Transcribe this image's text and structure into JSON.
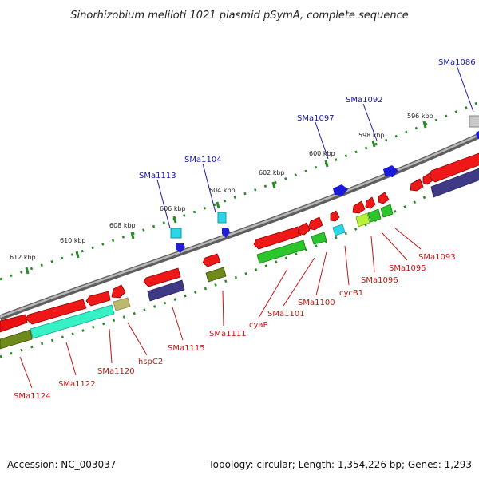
{
  "title": "Sinorhizobium meliloti 1021 plasmid pSymA, complete sequence",
  "footer": {
    "accession": "Accession: NC_003037",
    "info": "Topology: circular; Length: 1,354,226 bp; Genes: 1,293"
  },
  "colors": {
    "backbone": "#8c8c8c",
    "tick": "#2a8a2a",
    "label_top": "#1a1aa6",
    "label_bottom": "#c81414"
  },
  "scale_labels": [
    "612 kbp",
    "610 kbp",
    "608 kbp",
    "606 kbp",
    "604 kbp",
    "602 kbp",
    "600 kbp",
    "598 kbp",
    "596 kbp"
  ],
  "top_labels": [
    "SMa1113",
    "SMa1104",
    "SMa1097",
    "SMa1092",
    "SMa1086"
  ],
  "bottom_labels": [
    "SMa1124",
    "SMa1122",
    "SMa1120",
    "hspC2",
    "SMa1115",
    "SMa1111",
    "cyaP",
    "SMa1101",
    "SMa1100",
    "cycB1",
    "SMa1096",
    "SMa1095",
    "SMa1093"
  ]
}
